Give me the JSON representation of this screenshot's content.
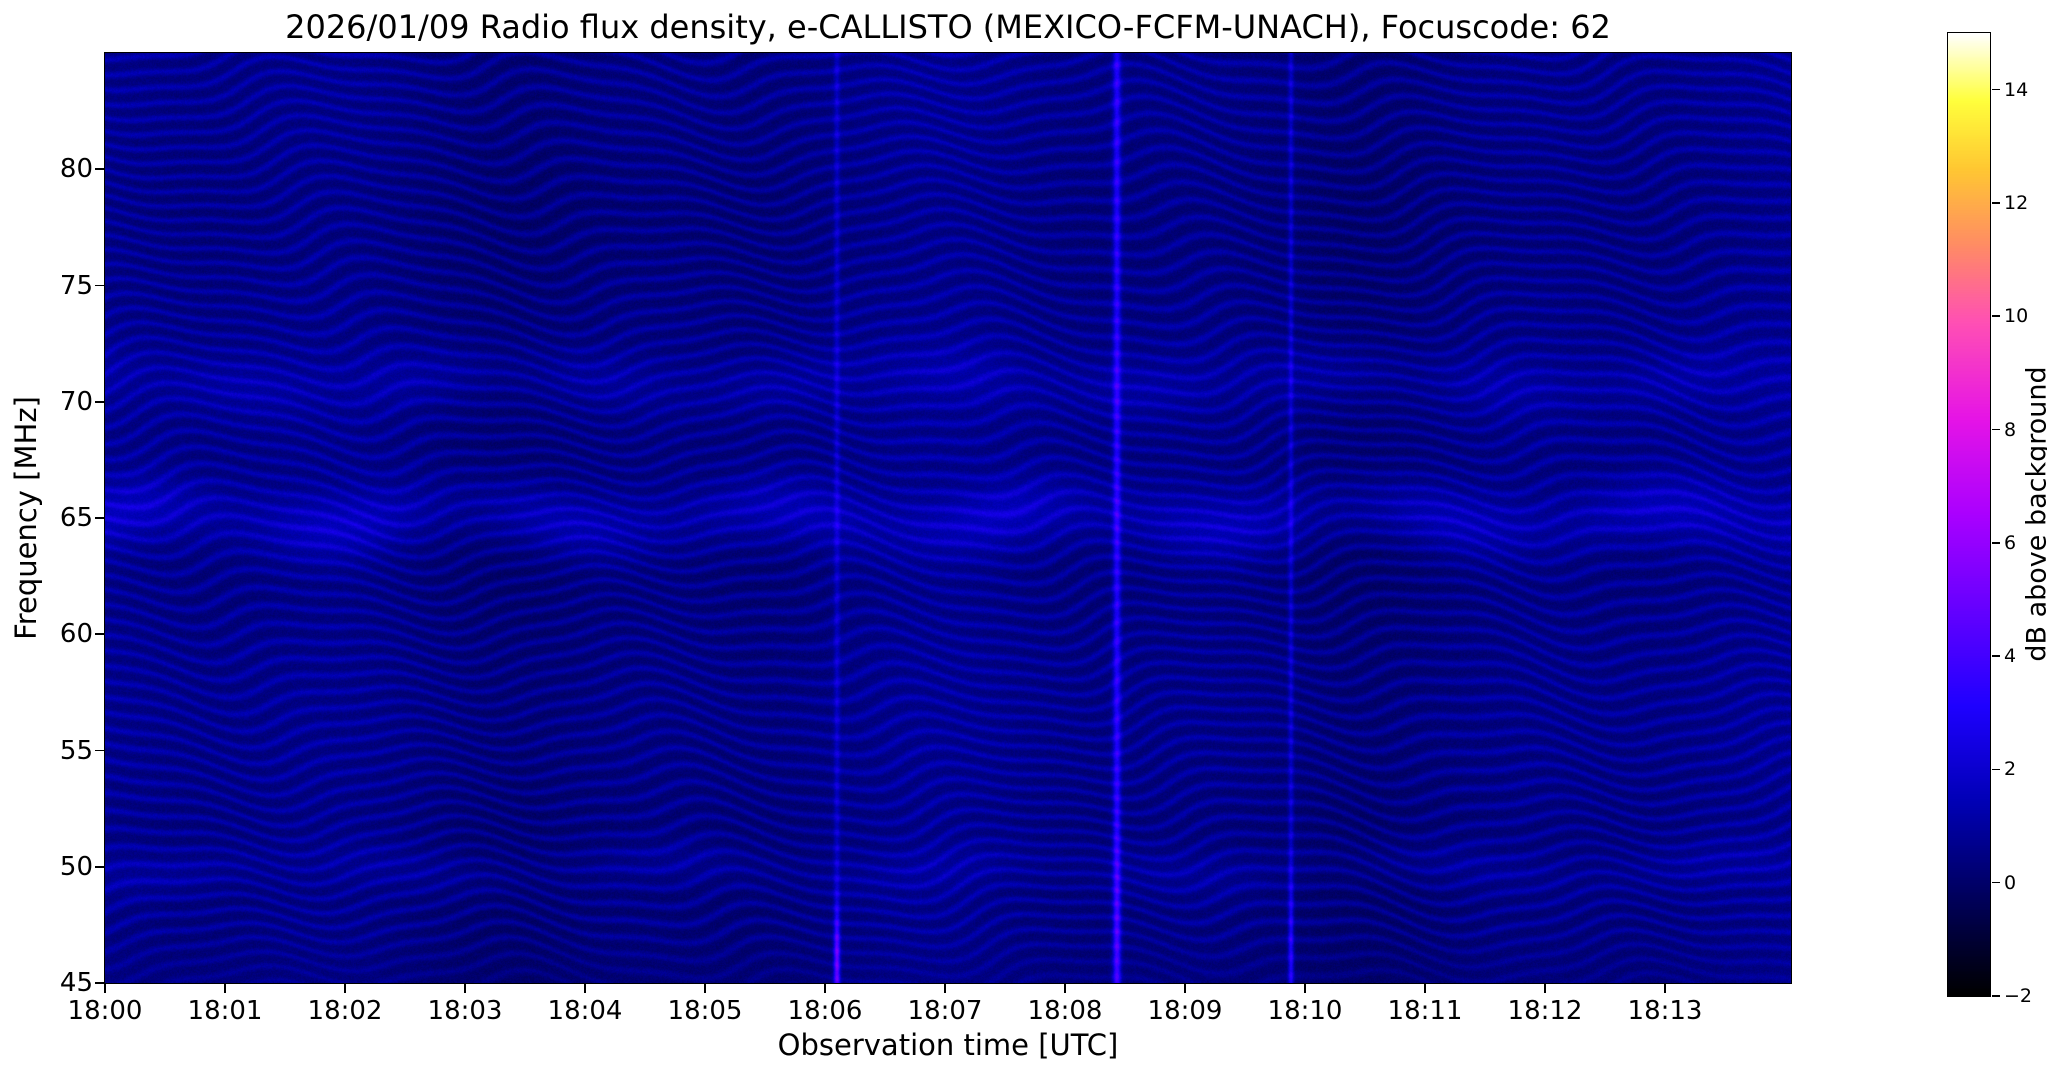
{
  "chart_data": {
    "type": "heatmap",
    "subtype": "radio-spectrogram",
    "title": "2026/01/09  Radio flux density, e-CALLISTO (MEXICO-FCFM-UNACH), Focuscode: 62",
    "date": "2026/01/09",
    "instrument": "e-CALLISTO",
    "station": "MEXICO-FCFM-UNACH",
    "focuscode": "62",
    "xlabel": "Observation time [UTC]",
    "ylabel": "Frequency [MHz]",
    "colorbar_label": "dB above background",
    "x_range_s": [
      0,
      843
    ],
    "x_tick_interval_s": 60,
    "x_ticks": [
      {
        "label": "18:00",
        "s": 0
      },
      {
        "label": "18:01",
        "s": 60
      },
      {
        "label": "18:02",
        "s": 120
      },
      {
        "label": "18:03",
        "s": 180
      },
      {
        "label": "18:04",
        "s": 240
      },
      {
        "label": "18:05",
        "s": 300
      },
      {
        "label": "18:06",
        "s": 360
      },
      {
        "label": "18:07",
        "s": 420
      },
      {
        "label": "18:08",
        "s": 480
      },
      {
        "label": "18:09",
        "s": 540
      },
      {
        "label": "18:10",
        "s": 600
      },
      {
        "label": "18:11",
        "s": 660
      },
      {
        "label": "18:12",
        "s": 720
      },
      {
        "label": "18:13",
        "s": 780
      }
    ],
    "y_range_mhz": [
      45,
      85
    ],
    "y_ticks": [
      {
        "label": "80",
        "mhz": 80
      },
      {
        "label": "75",
        "mhz": 75
      },
      {
        "label": "70",
        "mhz": 70
      },
      {
        "label": "65",
        "mhz": 65
      },
      {
        "label": "60",
        "mhz": 60
      },
      {
        "label": "55",
        "mhz": 55
      },
      {
        "label": "50",
        "mhz": 50
      },
      {
        "label": "45",
        "mhz": 45
      }
    ],
    "value_range_db": [
      -2,
      15
    ],
    "colorbar_ticks": [
      {
        "label": "14",
        "db": 14
      },
      {
        "label": "12",
        "db": 12
      },
      {
        "label": "10",
        "db": 10
      },
      {
        "label": "8",
        "db": 8
      },
      {
        "label": "6",
        "db": 6
      },
      {
        "label": "4",
        "db": 4
      },
      {
        "label": "2",
        "db": 2
      },
      {
        "label": "0",
        "db": 0
      },
      {
        "label": "−2",
        "db": -2
      }
    ],
    "colormap": {
      "name": "gnuplot2",
      "stops": [
        {
          "t": 0.0,
          "c": "#000000"
        },
        {
          "t": 0.1,
          "c": "#00005a"
        },
        {
          "t": 0.2,
          "c": "#0000b4"
        },
        {
          "t": 0.3,
          "c": "#1e00ff"
        },
        {
          "t": 0.4,
          "c": "#6400ff"
        },
        {
          "t": 0.5,
          "c": "#aa00ff"
        },
        {
          "t": 0.6,
          "c": "#e614e6"
        },
        {
          "t": 0.7,
          "c": "#ff50b4"
        },
        {
          "t": 0.78,
          "c": "#ff8c64"
        },
        {
          "t": 0.86,
          "c": "#ffc832"
        },
        {
          "t": 0.93,
          "c": "#ffff3c"
        },
        {
          "t": 1.0,
          "c": "#ffffff"
        }
      ]
    },
    "render": {
      "description": "Quiet blue background with wavy interference-fringe ridges, enhanced bands near 65, 71 and 50 MHz, and short broadband vertical bursts near 18:06, 18:08.4 and 18:09.9 UTC.",
      "ripple": {
        "stripe_rad_per_mhz": 9.2,
        "amplitude_db": 1.05,
        "bottom_fade_start_mhz": 45.3,
        "bottom_fade_width_mhz": 2.2,
        "bottom_fade_floor": 0.55,
        "wander": [
          {
            "amp_rad": 5.0,
            "period_s": 140,
            "rad_per_mhz": 0.3,
            "phase_rad": 0.6
          },
          {
            "amp_rad": 3.2,
            "period_s": 330,
            "rad_per_mhz": -0.16,
            "phase_rad": 2.4
          },
          {
            "amp_rad": 1.7,
            "period_s": 62,
            "rad_per_mhz": 0.5,
            "phase_rad": 4.4
          }
        ]
      },
      "base": {
        "offset_db": 0.18,
        "time_components": [
          {
            "amp_db": 0.16,
            "period_s": 390,
            "phase_rad": 0.9
          },
          {
            "amp_db": 0.1,
            "period_s": 145,
            "phase_rad": 2.6
          }
        ],
        "row_amp_db": 0.08,
        "row_rad_per_mhz": 0.45,
        "row_phase_rad": 1.2
      },
      "noise_db": 0.55,
      "bands": [
        {
          "center_mhz": 65.0,
          "sigma_mhz": 1.0,
          "amp_db": 1.25,
          "wiggle_mhz": 0.45,
          "wiggle_period_s": 150,
          "wiggle_phase_rad": 0.3,
          "mod_depth": 0.5,
          "mod_period_s": 110,
          "mod_phase_rad": 1.0
        },
        {
          "center_mhz": 70.9,
          "sigma_mhz": 0.85,
          "amp_db": 0.6,
          "wiggle_mhz": 0.35,
          "wiggle_period_s": 210,
          "wiggle_phase_rad": 2.0,
          "mod_depth": 0.5,
          "mod_period_s": 90,
          "mod_phase_rad": 3.1
        },
        {
          "center_mhz": 49.9,
          "sigma_mhz": 0.7,
          "amp_db": 0.5,
          "wiggle_mhz": 0.3,
          "wiggle_period_s": 180,
          "wiggle_phase_rad": 4.2,
          "mod_depth": 0.6,
          "mod_period_s": 130,
          "mod_phase_rad": 0.4
        }
      ],
      "bursts": [
        {
          "time_utc": "18:06:06",
          "t_s": 366,
          "sigma_s": 1.1,
          "amp_db": 1.3,
          "low_freq_boost_db": 3.4,
          "boost_center_mhz": 45.9,
          "boost_sigma_mhz": 1.5
        },
        {
          "time_utc": "18:08:26",
          "t_s": 506,
          "sigma_s": 1.4,
          "amp_db": 2.7,
          "low_freq_boost_db": 1.1,
          "boost_center_mhz": 47.0,
          "boost_sigma_mhz": 3.0
        },
        {
          "time_utc": "18:09:53",
          "t_s": 593,
          "sigma_s": 1.0,
          "amp_db": 1.5,
          "low_freq_boost_db": 1.5,
          "boost_center_mhz": 46.3,
          "boost_sigma_mhz": 2.2
        }
      ]
    }
  }
}
